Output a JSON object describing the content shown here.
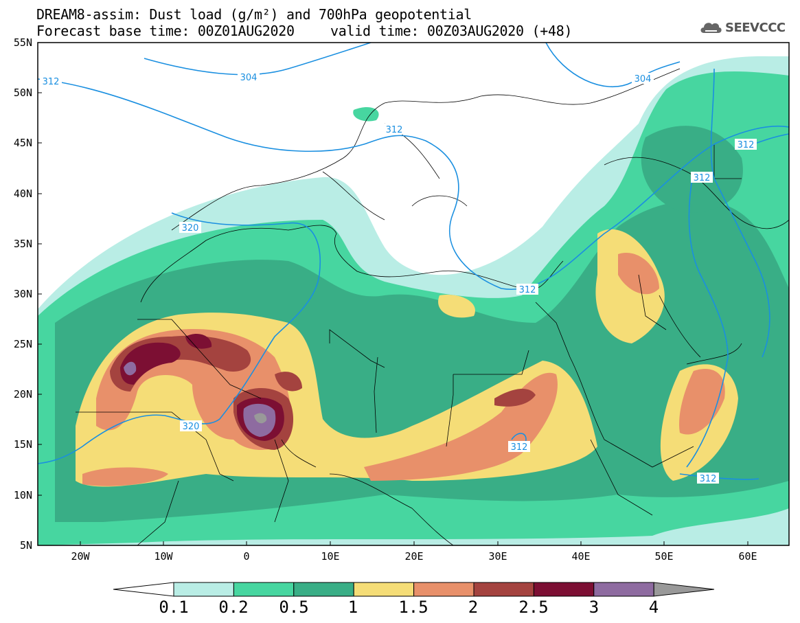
{
  "header": {
    "title_line1": "DREAM8-assim: Dust load (g/m²) and 700hPa geopotential",
    "base_time": "Forecast base time: 00Z01AUG2020",
    "valid_time": "valid time: 00Z03AUG2020 (+48)"
  },
  "logo": {
    "text": "SEEVCCC",
    "icon": "cloud-icon"
  },
  "axes": {
    "lat_labels": [
      "55N",
      "50N",
      "45N",
      "40N",
      "35N",
      "30N",
      "25N",
      "20N",
      "15N",
      "10N",
      "5N"
    ],
    "lon_labels": [
      "20W",
      "10W",
      "0",
      "10E",
      "20E",
      "30E",
      "40E",
      "50E",
      "60E"
    ]
  },
  "contours": {
    "labels": [
      "312",
      "304",
      "312",
      "320",
      "312",
      "304",
      "312",
      "312",
      "312",
      "320",
      "312",
      "312"
    ],
    "color": "#1a8fe0"
  },
  "colorbar": {
    "labels": [
      "0.1",
      "0.2",
      "0.5",
      "1",
      "1.5",
      "2",
      "2.5",
      "3",
      "4"
    ],
    "colors": [
      "#ffffff",
      "#b9ede5",
      "#47d6a0",
      "#39ae86",
      "#f5dd77",
      "#e8906a",
      "#a4433f",
      "#7c0f33",
      "#8e6ba0",
      "#999999"
    ]
  }
}
